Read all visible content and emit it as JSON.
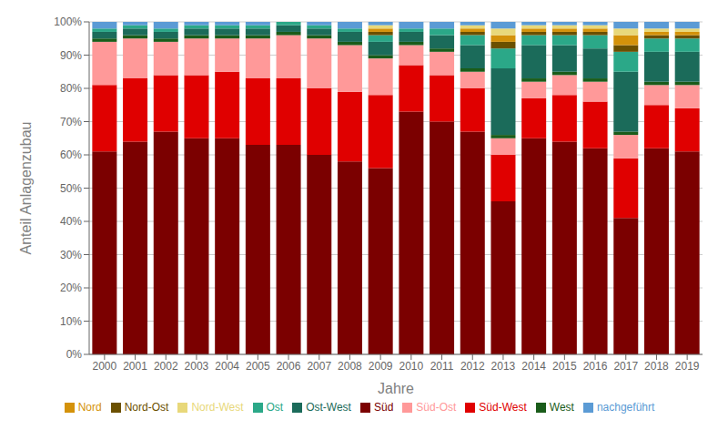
{
  "chart_data": {
    "type": "bar",
    "stacked": true,
    "xlabel": "Jahre",
    "ylabel": "Anteil Anlagenzubau",
    "categories": [
      "2000",
      "2001",
      "2002",
      "2003",
      "2004",
      "2005",
      "2006",
      "2007",
      "2008",
      "2009",
      "2010",
      "2011",
      "2012",
      "2013",
      "2014",
      "2015",
      "2016",
      "2017",
      "2018",
      "2019"
    ],
    "series": [
      {
        "name": "Süd",
        "color": "#7B0000",
        "values": [
          61,
          64,
          67,
          65,
          65,
          63,
          63,
          60,
          58,
          56,
          73,
          70,
          67,
          46,
          65,
          64,
          62,
          41,
          62,
          61
        ]
      },
      {
        "name": "Süd-West",
        "color": "#E00000",
        "values": [
          20,
          19,
          17,
          19,
          20,
          20,
          20,
          20,
          21,
          22,
          14,
          14,
          13,
          14,
          12,
          14,
          14,
          18,
          13,
          13
        ]
      },
      {
        "name": "Süd-Ost",
        "color": "#FF9999",
        "values": [
          13,
          12,
          10,
          11,
          10,
          12,
          13,
          15,
          14,
          11,
          6,
          7,
          5,
          5,
          5,
          6,
          6,
          7,
          6,
          7
        ]
      },
      {
        "name": "West",
        "color": "#1A5C1A",
        "values": [
          1,
          1,
          1,
          1,
          1,
          1,
          1,
          1,
          1,
          1,
          1,
          1,
          1,
          1,
          1,
          1,
          1,
          1,
          1,
          1
        ]
      },
      {
        "name": "Ost-West",
        "color": "#1B6B5A",
        "values": [
          2,
          2,
          2,
          2,
          2,
          2,
          2,
          2,
          3,
          4,
          3,
          4,
          7,
          20,
          10,
          8,
          9,
          18,
          9,
          9
        ]
      },
      {
        "name": "Ost",
        "color": "#2BA888",
        "values": [
          1,
          1,
          1,
          1,
          1,
          1,
          1,
          1,
          1,
          2,
          1,
          2,
          3,
          6,
          3,
          3,
          4,
          6,
          4,
          4
        ]
      },
      {
        "name": "Nord-Ost",
        "color": "#6B5000",
        "values": [
          0,
          0,
          0,
          0,
          0,
          0,
          0,
          0,
          0,
          1,
          0,
          0,
          1,
          2,
          1,
          1,
          1,
          2,
          1,
          1
        ]
      },
      {
        "name": "Nord",
        "color": "#D4920A",
        "values": [
          0,
          0,
          0,
          0,
          0,
          0,
          0,
          0,
          0,
          1,
          0,
          0,
          1,
          2,
          1,
          1,
          1,
          3,
          1,
          1
        ]
      },
      {
        "name": "Nord-West",
        "color": "#E8D87A",
        "values": [
          0,
          0,
          0,
          0,
          0,
          0,
          0,
          0,
          0,
          1,
          0,
          0,
          1,
          2,
          1,
          1,
          1,
          2,
          1,
          1
        ]
      },
      {
        "name": "nachgeführt",
        "color": "#5B9BD5",
        "values": [
          2,
          1,
          2,
          1,
          1,
          1,
          0,
          1,
          2,
          1,
          2,
          2,
          1,
          2,
          1,
          1,
          1,
          2,
          2,
          2
        ]
      }
    ],
    "ylim": [
      0,
      100
    ],
    "yticks": [
      {
        "value": 0,
        "label": "0%"
      },
      {
        "value": 10,
        "label": "10%"
      },
      {
        "value": 20,
        "label": "20%"
      },
      {
        "value": 30,
        "label": "30%"
      },
      {
        "value": 40,
        "label": "40%"
      },
      {
        "value": 50,
        "label": "50%"
      },
      {
        "value": 60,
        "label": "60%"
      },
      {
        "value": 70,
        "label": "70%"
      },
      {
        "value": 80,
        "label": "80%"
      },
      {
        "value": 90,
        "label": "90%"
      },
      {
        "value": 100,
        "label": "100%"
      }
    ],
    "grid": true,
    "legend": "bottom"
  }
}
